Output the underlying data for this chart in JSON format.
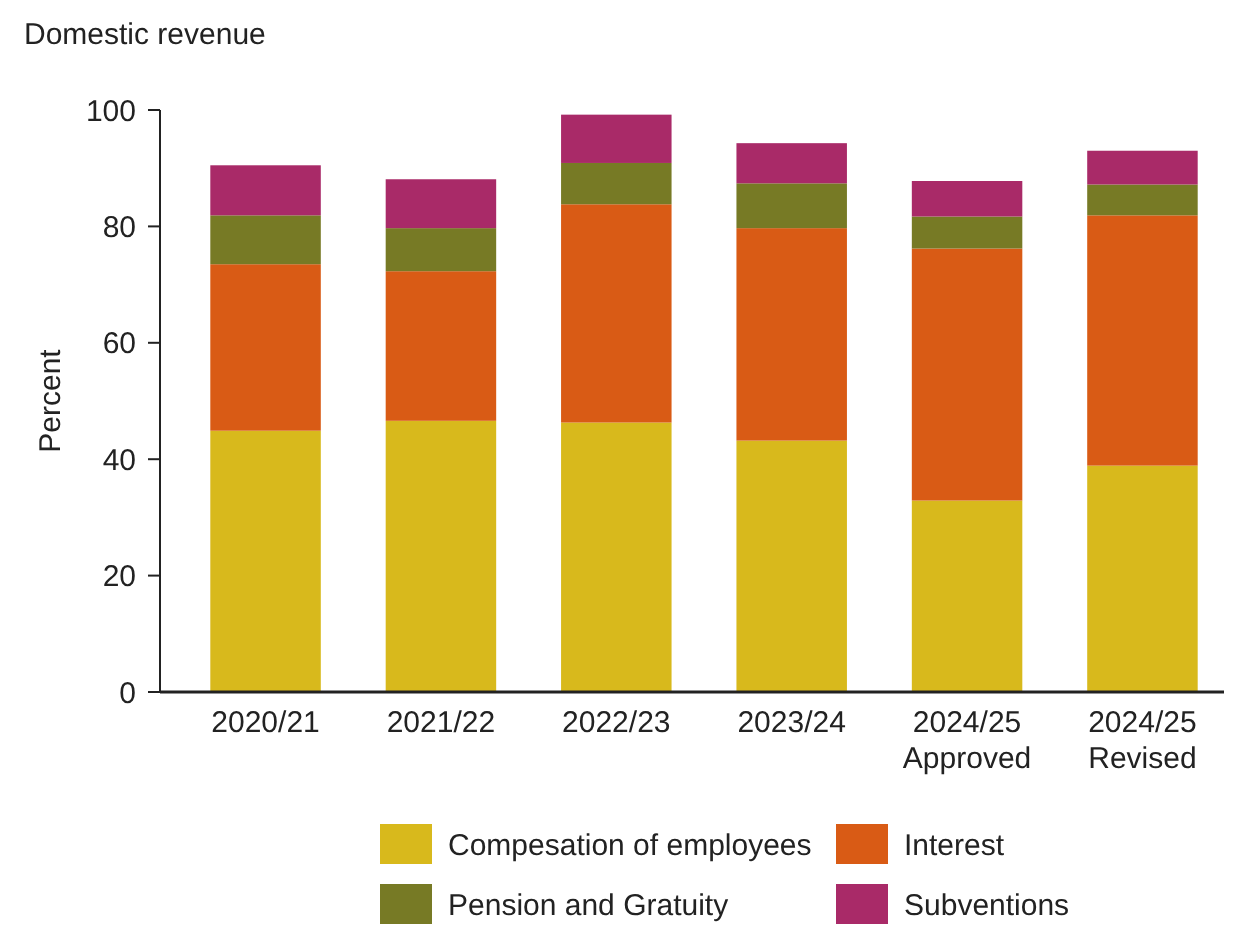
{
  "chart_data": {
    "type": "bar",
    "title": "Domestic revenue",
    "ylabel": "Percent",
    "stacked": true,
    "categories": [
      "2020/21",
      "2021/22",
      "2022/23",
      "2023/24",
      "2024/25 Approved",
      "2024/25 Revised"
    ],
    "series": [
      {
        "name": "Compesation of employees",
        "color": "#d8b91c",
        "values": [
          44.9,
          46.6,
          46.3,
          43.2,
          32.9,
          38.9
        ]
      },
      {
        "name": "Interest",
        "color": "#d95b15",
        "values": [
          28.6,
          25.7,
          37.5,
          36.5,
          43.3,
          43.0
        ]
      },
      {
        "name": "Pension and Gratuity",
        "color": "#777a25",
        "values": [
          8.4,
          7.4,
          7.1,
          7.7,
          5.5,
          5.3
        ]
      },
      {
        "name": "Subventions",
        "color": "#a92a68",
        "values": [
          8.6,
          8.4,
          8.3,
          6.9,
          6.1,
          5.8
        ]
      }
    ],
    "ylim": [
      0,
      100
    ],
    "yticks": [
      0,
      20,
      40,
      60,
      80,
      100
    ],
    "grid": false,
    "legend": "bottom"
  }
}
